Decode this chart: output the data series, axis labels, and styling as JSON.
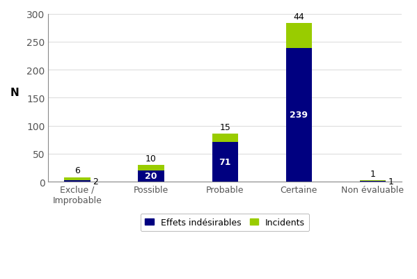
{
  "categories": [
    "Exclue /\nImprobable",
    "Possible",
    "Probable",
    "Certaine",
    "Non évaluable"
  ],
  "effets_indesirables": [
    2,
    20,
    71,
    239,
    1
  ],
  "incidents": [
    6,
    10,
    15,
    44,
    1
  ],
  "effets_color": "#000080",
  "incidents_color": "#99cc00",
  "ylabel": "N",
  "ylim": [
    0,
    300
  ],
  "yticks": [
    0,
    50,
    100,
    150,
    200,
    250,
    300
  ],
  "legend_labels": [
    "Effets indésirables",
    "Incidents"
  ],
  "bar_width": 0.35,
  "label_color_effets": "white",
  "label_color_incidents": "black",
  "background_color": "#ffffff",
  "grid_color": "#dddddd"
}
